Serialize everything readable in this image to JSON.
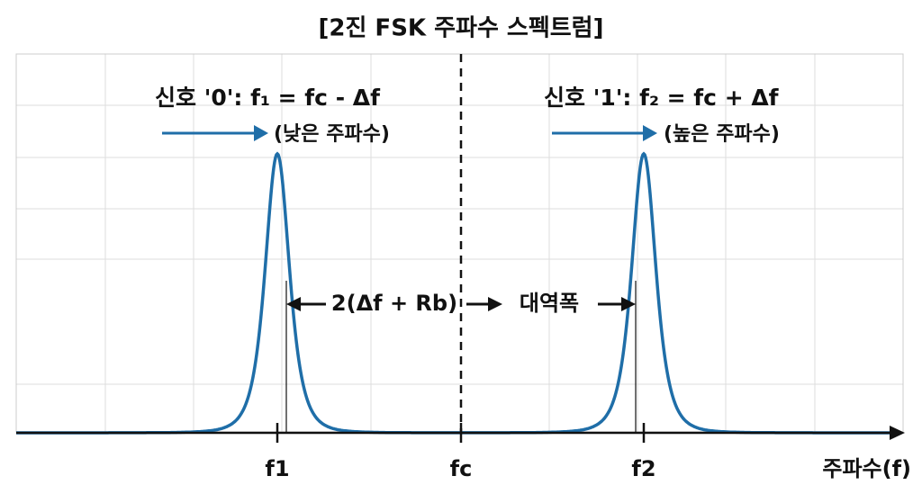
{
  "header": {
    "title": "[2진 FSK 주파수 스펙트럼]"
  },
  "signals": [
    {
      "label": "신호 '0': f₁ = fc - Δf",
      "note": "(낮은 주파수)"
    },
    {
      "label": "신호 '1': f₂ = fc + Δf",
      "note": "(높은 주파수)"
    }
  ],
  "bandwidth": {
    "formula": "2(Δf + Rb)",
    "label": "대역폭"
  },
  "axis": {
    "ticks": [
      "f1",
      "fc",
      "f2"
    ],
    "label": "주파수(f)"
  }
}
